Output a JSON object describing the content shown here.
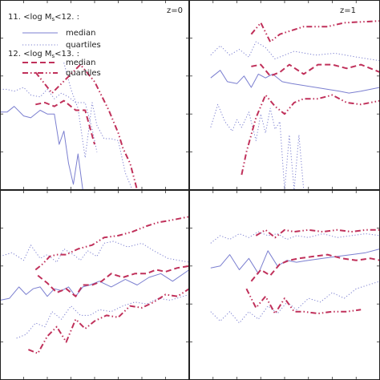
{
  "chart_data": [
    {
      "type": "line",
      "panel": "top-left",
      "xlim": [
        0,
        8
      ],
      "ylim": [
        0,
        10
      ],
      "annotation": "z=0",
      "legend": {
        "placement": "top-left",
        "group1_title": "11. <log M",
        "group1_sub": "s",
        "group1_tail": "<12. :",
        "group2_title": "12. <log M",
        "group2_sub": "s",
        "group2_tail": "<13. :",
        "entries": [
          {
            "group": 1,
            "label": "median",
            "style": "solid",
            "color": "#7b7fd0"
          },
          {
            "group": 1,
            "label": "quartiles",
            "style": "dotted",
            "color": "#7b7fd0"
          },
          {
            "group": 2,
            "label": "median",
            "style": "dashed",
            "color": "#c0305a"
          },
          {
            "group": 2,
            "label": "quartiles",
            "style": "dashdotdot",
            "color": "#c0305a"
          }
        ]
      },
      "series": [
        {
          "style": "dotted",
          "color": "#7b7fd0",
          "x": [
            0.0,
            0.3,
            0.6,
            1.0,
            1.3,
            1.7,
            2.0,
            2.3,
            2.6,
            2.9,
            3.2,
            3.6,
            3.9,
            4.1
          ],
          "y": [
            5.3,
            5.3,
            5.2,
            5.4,
            5.0,
            4.9,
            5.3,
            4.8,
            5.1,
            4.9,
            4.6,
            4.6,
            3.2,
            2.0
          ]
        },
        {
          "style": "solid",
          "color": "#7b7fd0",
          "x": [
            0.0,
            0.3,
            0.6,
            1.0,
            1.3,
            1.7,
            2.0,
            2.3,
            2.5,
            2.7,
            2.9,
            3.1,
            3.3,
            3.5
          ],
          "y": [
            4.1,
            4.1,
            4.4,
            3.9,
            3.8,
            4.2,
            4.0,
            4.0,
            2.4,
            3.1,
            1.4,
            0.3,
            1.9,
            0.0
          ]
        },
        {
          "style": "dotted",
          "color": "#7b7fd0",
          "x": [
            2.7,
            3.0,
            3.3,
            3.6,
            3.9,
            4.1,
            4.4,
            4.7,
            5.0,
            5.3,
            5.6
          ],
          "y": [
            6.7,
            5.3,
            4.3,
            1.7,
            4.6,
            3.4,
            2.7,
            2.7,
            2.6,
            0.9,
            0.0
          ]
        },
        {
          "style": "dashed",
          "color": "#c0305a",
          "x": [
            1.5,
            1.9,
            2.3,
            2.7,
            3.2,
            3.6,
            4.0
          ],
          "y": [
            4.5,
            4.6,
            4.4,
            4.7,
            4.2,
            4.2,
            2.4
          ]
        },
        {
          "style": "dashdotdot",
          "color": "#c0305a",
          "x": [
            1.5,
            2.2,
            3.4,
            4.0,
            4.6,
            5.0,
            5.2,
            5.5,
            5.8
          ],
          "y": [
            6.2,
            5.1,
            6.6,
            5.7,
            4.2,
            3.0,
            2.2,
            1.4,
            0.0
          ]
        }
      ]
    },
    {
      "type": "line",
      "panel": "top-right",
      "xlim": [
        0,
        8
      ],
      "ylim": [
        0,
        10
      ],
      "annotation": "z=1",
      "series": [
        {
          "style": "dotted",
          "color": "#7b7fd0",
          "x": [
            0.9,
            1.3,
            1.7,
            2.1,
            2.5,
            2.8,
            3.2,
            3.6,
            4.4,
            5.3,
            6.1,
            7.0,
            8.0
          ],
          "y": [
            7.1,
            7.6,
            7.1,
            7.4,
            7.0,
            7.8,
            7.5,
            6.9,
            7.3,
            7.1,
            7.2,
            7.0,
            6.8
          ]
        },
        {
          "style": "solid",
          "color": "#7b7fd0",
          "x": [
            0.9,
            1.3,
            1.6,
            2.0,
            2.3,
            2.6,
            2.9,
            3.2,
            3.5,
            3.9,
            4.3,
            4.8,
            5.3,
            5.8,
            6.3,
            6.7,
            7.2,
            8.0
          ],
          "y": [
            5.9,
            6.3,
            5.7,
            5.6,
            6.0,
            5.4,
            6.1,
            5.9,
            6.1,
            5.7,
            5.6,
            5.5,
            5.4,
            5.3,
            5.2,
            5.1,
            5.2,
            5.4
          ]
        },
        {
          "style": "dotted",
          "color": "#7b7fd0",
          "x": [
            0.9,
            1.2,
            1.5,
            1.8,
            2.0,
            2.2,
            2.5,
            2.8,
            3.0,
            3.2,
            3.4,
            3.6,
            3.8,
            4.0,
            4.2,
            4.4,
            4.6,
            4.8
          ],
          "y": [
            3.3,
            4.5,
            3.6,
            3.1,
            3.7,
            3.3,
            4.1,
            2.6,
            4.0,
            3.0,
            4.3,
            3.2,
            3.6,
            0.0,
            2.9,
            0.0,
            2.9,
            0.0
          ]
        },
        {
          "style": "dashdotdot",
          "color": "#c0305a",
          "x": [
            2.6,
            3.0,
            3.4,
            3.8,
            4.8,
            5.8,
            6.5,
            8.0
          ],
          "y": [
            8.2,
            8.8,
            7.8,
            8.2,
            8.6,
            8.6,
            8.8,
            8.9
          ]
        },
        {
          "style": "dashed",
          "color": "#c0305a",
          "x": [
            2.6,
            3.0,
            3.4,
            3.8,
            4.2,
            4.8,
            5.4,
            6.0,
            6.6,
            7.2,
            8.0
          ],
          "y": [
            6.5,
            6.6,
            6.0,
            6.2,
            6.6,
            6.1,
            6.6,
            6.6,
            6.4,
            6.6,
            6.2
          ]
        },
        {
          "style": "dashdotdot",
          "color": "#c0305a",
          "x": [
            2.2,
            2.4,
            2.8,
            3.2,
            3.6,
            4.0,
            4.4,
            4.8,
            5.4,
            6.0,
            6.6,
            7.2,
            8.0
          ],
          "y": [
            0.8,
            2.0,
            3.8,
            5.0,
            4.4,
            4.0,
            4.6,
            4.8,
            4.8,
            5.0,
            4.6,
            4.5,
            4.7
          ]
        }
      ]
    },
    {
      "type": "line",
      "panel": "bottom-left",
      "xlim": [
        0,
        8
      ],
      "ylim": [
        0,
        10
      ],
      "series": [
        {
          "style": "dotted",
          "color": "#7b7fd0",
          "x": [
            0.0,
            0.5,
            1.0,
            1.3,
            1.7,
            2.0,
            2.4,
            2.7,
            3.1,
            3.4,
            3.7,
            4.1,
            4.4,
            4.8,
            5.4,
            6.0,
            6.5,
            7.1,
            8.0
          ],
          "y": [
            6.5,
            6.7,
            6.3,
            7.1,
            6.4,
            6.6,
            6.2,
            6.9,
            6.6,
            6.3,
            6.8,
            6.5,
            7.2,
            7.3,
            7.0,
            7.2,
            6.8,
            6.4,
            6.2
          ]
        },
        {
          "style": "dashdotdot",
          "color": "#c0305a",
          "x": [
            1.5,
            1.8,
            2.1,
            2.4,
            2.8,
            3.3,
            3.9,
            4.4,
            5.0,
            5.6,
            6.2,
            6.7,
            7.2,
            8.0
          ],
          "y": [
            5.8,
            6.1,
            6.5,
            6.6,
            6.6,
            6.9,
            7.1,
            7.5,
            7.6,
            7.8,
            8.1,
            8.3,
            8.4,
            8.6
          ]
        },
        {
          "style": "solid",
          "color": "#7b7fd0",
          "x": [
            0.0,
            0.4,
            0.8,
            1.1,
            1.4,
            1.7,
            2.0,
            2.3,
            2.6,
            2.9,
            3.2,
            3.5,
            3.8,
            4.2,
            4.7,
            5.3,
            5.8,
            6.3,
            6.8,
            7.3,
            8.0
          ],
          "y": [
            4.2,
            4.3,
            4.9,
            4.5,
            4.8,
            4.9,
            4.4,
            4.8,
            4.7,
            4.9,
            4.4,
            4.9,
            5.0,
            5.2,
            4.9,
            5.3,
            5.0,
            5.4,
            5.6,
            5.2,
            5.8
          ]
        },
        {
          "style": "dashed",
          "color": "#c0305a",
          "x": [
            1.6,
            2.0,
            2.4,
            2.8,
            3.2,
            3.5,
            3.9,
            4.3,
            4.7,
            5.2,
            5.7,
            6.2,
            6.6,
            7.0,
            7.5,
            8.0
          ],
          "y": [
            5.5,
            5.1,
            4.6,
            4.8,
            4.4,
            5.0,
            5.0,
            5.2,
            5.6,
            5.4,
            5.6,
            5.6,
            5.8,
            5.7,
            5.9,
            6.0
          ]
        },
        {
          "style": "dotted",
          "color": "#7b7fd0",
          "x": [
            0.7,
            1.1,
            1.5,
            1.9,
            2.2,
            2.6,
            3.0,
            3.4,
            3.8,
            4.2,
            4.7,
            5.2,
            5.7,
            6.2,
            6.7,
            7.2,
            8.0
          ],
          "y": [
            2.2,
            2.4,
            3.0,
            2.8,
            3.6,
            3.2,
            3.9,
            3.4,
            3.4,
            3.7,
            3.6,
            3.9,
            4.1,
            4.0,
            4.3,
            4.2,
            4.5
          ]
        },
        {
          "style": "dashdotdot",
          "color": "#c0305a",
          "x": [
            1.2,
            1.6,
            2.0,
            2.4,
            2.8,
            3.2,
            3.6,
            4.0,
            4.5,
            5.0,
            5.5,
            6.0,
            6.5,
            7.0,
            7.5,
            8.0
          ],
          "y": [
            1.6,
            1.4,
            2.3,
            2.8,
            2.0,
            3.2,
            2.7,
            3.1,
            3.4,
            3.3,
            3.9,
            3.8,
            4.1,
            4.5,
            4.4,
            4.8
          ]
        }
      ]
    },
    {
      "type": "line",
      "panel": "bottom-right",
      "xlim": [
        0,
        8
      ],
      "ylim": [
        0,
        10
      ],
      "series": [
        {
          "style": "dotted",
          "color": "#7b7fd0",
          "x": [
            0.9,
            1.3,
            1.7,
            2.1,
            2.5,
            2.9,
            3.3,
            3.7,
            4.1,
            4.5,
            5.0,
            5.6,
            6.2,
            6.8,
            7.4,
            8.0
          ],
          "y": [
            7.2,
            7.6,
            7.4,
            7.7,
            7.5,
            7.8,
            7.6,
            7.7,
            7.4,
            7.6,
            7.5,
            7.7,
            7.5,
            7.6,
            7.7,
            7.6
          ]
        },
        {
          "style": "dashdotdot",
          "color": "#c0305a",
          "x": [
            2.8,
            3.2,
            3.6,
            4.0,
            4.4,
            5.0,
            5.6,
            6.2,
            6.8,
            7.4,
            8.0
          ],
          "y": [
            7.6,
            7.9,
            7.5,
            7.9,
            7.8,
            7.9,
            7.8,
            7.9,
            7.8,
            7.9,
            7.9
          ]
        },
        {
          "style": "solid",
          "color": "#7b7fd0",
          "x": [
            0.9,
            1.3,
            1.7,
            2.1,
            2.5,
            2.9,
            3.3,
            3.7,
            4.1,
            4.5,
            5.0,
            5.6,
            6.2,
            6.8,
            7.4,
            8.0
          ],
          "y": [
            5.9,
            6.0,
            6.6,
            5.8,
            6.4,
            5.6,
            6.8,
            6.0,
            6.3,
            6.2,
            6.3,
            6.4,
            6.5,
            6.6,
            6.7,
            6.9
          ]
        },
        {
          "style": "dashed",
          "color": "#c0305a",
          "x": [
            2.6,
            3.0,
            3.4,
            3.8,
            4.2,
            4.6,
            5.2,
            5.8,
            6.4,
            7.0,
            7.6,
            8.0
          ],
          "y": [
            5.2,
            5.8,
            5.5,
            6.1,
            6.3,
            6.4,
            6.5,
            6.6,
            6.4,
            6.3,
            6.4,
            6.3
          ]
        },
        {
          "style": "dotted",
          "color": "#7b7fd0",
          "x": [
            0.9,
            1.3,
            1.7,
            2.1,
            2.5,
            2.9,
            3.3,
            3.7,
            4.1,
            4.5,
            5.0,
            5.5,
            6.0,
            6.5,
            7.0,
            7.5,
            8.0
          ],
          "y": [
            3.6,
            3.1,
            3.6,
            3.0,
            3.6,
            3.2,
            3.9,
            3.5,
            4.1,
            3.7,
            4.3,
            4.1,
            4.6,
            4.3,
            4.8,
            5.0,
            5.2
          ]
        },
        {
          "style": "dashdotdot",
          "color": "#c0305a",
          "x": [
            2.4,
            2.8,
            3.2,
            3.6,
            4.0,
            4.4,
            4.8,
            5.4,
            6.0,
            6.6,
            7.2
          ],
          "y": [
            4.8,
            3.8,
            4.4,
            3.5,
            4.3,
            3.6,
            3.6,
            3.5,
            3.6,
            3.6,
            3.7
          ]
        }
      ]
    }
  ]
}
